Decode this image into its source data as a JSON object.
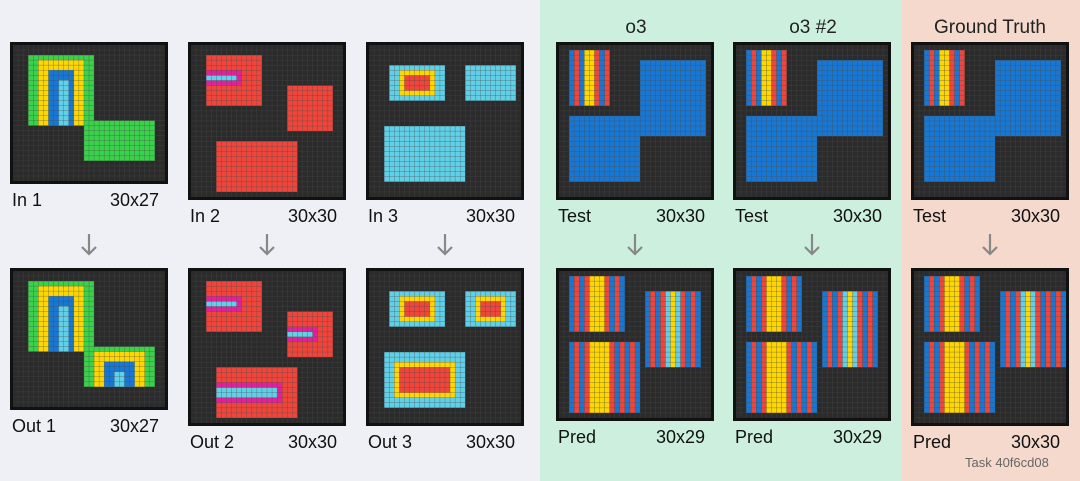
{
  "colors": {
    "page_bg": "#eef0f5",
    "o3_bg": "#cdf0de",
    "gt_bg": "#f4d9cc",
    "cell_bg": "#2b2b2b",
    "grid_line": "#4a4a4a",
    "green": "#3ad24a",
    "yellow": "#ffd700",
    "blue": "#1877d2",
    "cyan": "#5fd0e8",
    "red": "#f0453a",
    "magenta": "#e0229a"
  },
  "headers": {
    "o3": "o3",
    "o3_2": "o3 #2",
    "ground_truth": "Ground Truth"
  },
  "panels": {
    "in1": {
      "name": "In 1",
      "size": "30x27"
    },
    "out1": {
      "name": "Out 1",
      "size": "30x27"
    },
    "in2": {
      "name": "In 2",
      "size": "30x30"
    },
    "out2": {
      "name": "Out 2",
      "size": "30x30"
    },
    "in3": {
      "name": "In 3",
      "size": "30x30"
    },
    "out3": {
      "name": "Out 3",
      "size": "30x30"
    },
    "o3_test": {
      "name": "Test",
      "size": "30x30"
    },
    "o3_pred": {
      "name": "Pred",
      "size": "30x29"
    },
    "o3b_test": {
      "name": "Test",
      "size": "30x30"
    },
    "o3b_pred": {
      "name": "Pred",
      "size": "30x29"
    },
    "gt_test": {
      "name": "Test",
      "size": "30x30"
    },
    "gt_pred": {
      "name": "Pred",
      "size": "30x30"
    }
  },
  "footer": "Task 40f6cd08"
}
